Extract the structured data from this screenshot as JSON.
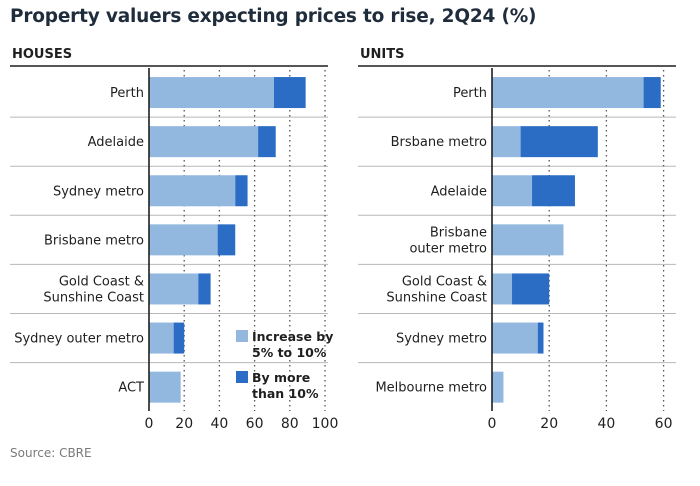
{
  "title": "Property valuers expecting prices to rise, 2Q24 (%)",
  "source": "Source: CBRE",
  "colors": {
    "increase_5_to_10": "#93b8e0",
    "more_than_10": "#2b6cc4",
    "axis": "#1f1f1f",
    "separator": "#b8b8b8",
    "grid": "#555555"
  },
  "legend": {
    "increase_5_to_10": [
      "Increase by",
      "5% to 10%"
    ],
    "more_than_10": [
      "By more",
      "than 10%"
    ]
  },
  "chart_data": [
    {
      "type": "bar",
      "orientation": "horizontal",
      "stacked": true,
      "panel_title": "HOUSES",
      "categories": [
        [
          "Perth"
        ],
        [
          "Adelaide"
        ],
        [
          "Sydney metro"
        ],
        [
          "Brisbane metro"
        ],
        [
          "Gold Coast &",
          "Sunshine Coast"
        ],
        [
          "Sydney outer metro"
        ],
        [
          "ACT"
        ]
      ],
      "series": [
        {
          "name": "Increase by 5% to 10%",
          "values": [
            71,
            62,
            49,
            39,
            28,
            14,
            18
          ]
        },
        {
          "name": "By more than 10%",
          "values": [
            18,
            10,
            7,
            10,
            7,
            6,
            0
          ]
        }
      ],
      "xlim": [
        0,
        100
      ],
      "xticks": [
        0,
        20,
        40,
        60,
        80,
        100
      ],
      "grid": true
    },
    {
      "type": "bar",
      "orientation": "horizontal",
      "stacked": true,
      "panel_title": "UNITS",
      "categories": [
        [
          "Perth"
        ],
        [
          "Brsbane metro"
        ],
        [
          "Adelaide"
        ],
        [
          "Brisbane",
          "outer metro"
        ],
        [
          "Gold Coast &",
          "Sunshine Coast"
        ],
        [
          "Sydney metro"
        ],
        [
          "Melbourne metro"
        ]
      ],
      "series": [
        {
          "name": "Increase by 5% to 10%",
          "values": [
            53,
            10,
            14,
            25,
            7,
            16,
            4
          ]
        },
        {
          "name": "By more than 10%",
          "values": [
            6,
            27,
            15,
            0,
            13,
            2,
            0
          ]
        }
      ],
      "xlim": [
        0,
        60
      ],
      "xticks": [
        0,
        20,
        40,
        60
      ],
      "grid": true
    }
  ]
}
